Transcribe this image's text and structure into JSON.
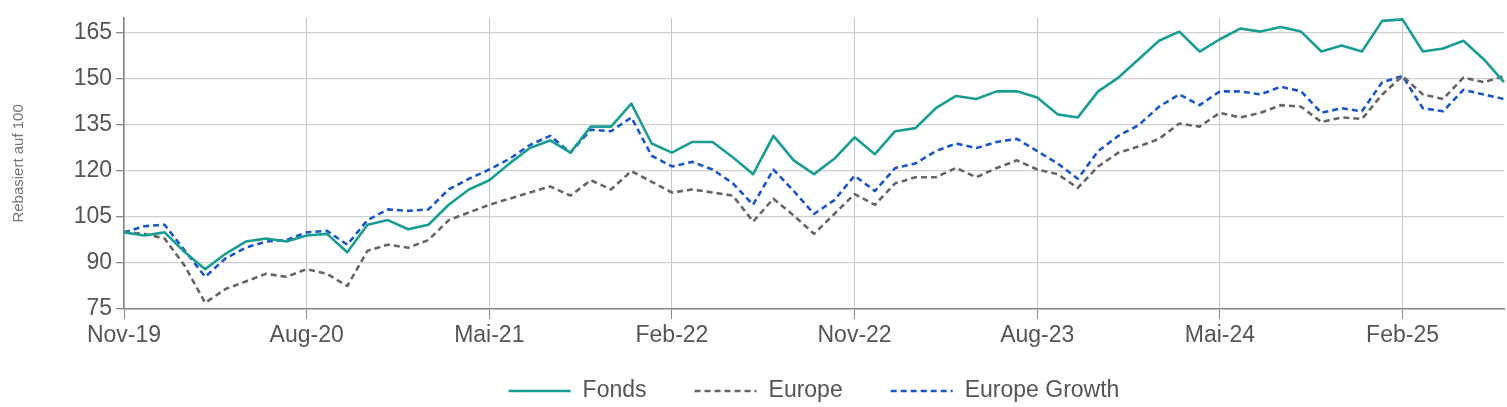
{
  "chart_data": {
    "type": "line",
    "ylabel": "Rebasiert auf 100",
    "categories": [
      "Nov-19",
      null,
      null,
      null,
      null,
      null,
      null,
      null,
      null,
      "Aug-20",
      null,
      null,
      null,
      null,
      null,
      null,
      null,
      null,
      "Mai-21",
      null,
      null,
      null,
      null,
      null,
      null,
      null,
      null,
      "Feb-22",
      null,
      null,
      null,
      null,
      null,
      null,
      null,
      null,
      "Nov-22",
      null,
      null,
      null,
      null,
      null,
      null,
      null,
      null,
      "Aug-23",
      null,
      null,
      null,
      null,
      null,
      null,
      null,
      null,
      "Mai-24",
      null,
      null,
      null,
      null,
      null,
      null,
      null,
      null,
      "Feb-25",
      null,
      null,
      null,
      null,
      null
    ],
    "series": [
      {
        "name": "Fonds",
        "color": "#1a9e94",
        "line_style": "solid",
        "values": [
          100,
          99,
          100,
          93.5,
          88,
          93,
          97,
          98,
          97,
          99,
          99.5,
          93.5,
          102.5,
          104,
          101,
          102.5,
          109,
          114,
          117,
          122.5,
          127.5,
          130,
          126,
          134.5,
          134.5,
          142,
          129,
          126,
          129.5,
          129.5,
          124.5,
          119,
          131.5,
          123.5,
          119,
          124,
          131,
          125.5,
          133,
          134,
          140.5,
          144.5,
          143.5,
          146,
          146,
          144,
          138.5,
          137.5,
          146,
          150.5,
          156.5,
          162.5,
          165.5,
          159,
          163,
          166.5,
          165.5,
          167,
          165.5,
          159,
          161,
          159,
          169,
          169.5,
          159,
          160,
          162.5,
          156.5,
          149
        ]
      },
      {
        "name": "Europe",
        "color": "#666666",
        "line_style": "dashed",
        "values": [
          100,
          99.5,
          98,
          89,
          77,
          81.5,
          84,
          86.5,
          85.5,
          88,
          86.5,
          82.5,
          94,
          96,
          95,
          97.5,
          104,
          106.5,
          109,
          111,
          113,
          115,
          112,
          117,
          114,
          120,
          116.5,
          113,
          114,
          113,
          112,
          103.5,
          111,
          105.5,
          99.5,
          106,
          112.5,
          109,
          116,
          118,
          118,
          121,
          118,
          121,
          123.5,
          120.5,
          119,
          114.5,
          121.5,
          126,
          128,
          130.5,
          135.5,
          134.5,
          139,
          137.5,
          139,
          141.5,
          141,
          136,
          137.5,
          137,
          145,
          151,
          145,
          143.5,
          150.5,
          149,
          151
        ]
      },
      {
        "name": "Europe Growth",
        "color": "#1a56c8",
        "line_style": "dashed",
        "values": [
          100,
          102,
          102.5,
          94,
          85.5,
          91.5,
          95,
          97,
          97.5,
          100,
          100.5,
          96,
          104,
          107.5,
          107,
          107.5,
          114,
          117.5,
          120.5,
          124,
          128.5,
          131.5,
          126,
          133.5,
          133,
          137.5,
          125,
          121.5,
          123,
          120.5,
          116,
          109,
          120.5,
          113.5,
          106,
          110.5,
          118.5,
          113.5,
          121,
          122.5,
          126.5,
          129,
          127.5,
          129.5,
          130.5,
          126.5,
          122.5,
          117.5,
          126.5,
          131.5,
          135,
          141,
          145,
          141.5,
          146,
          146,
          145,
          147.5,
          146,
          139,
          140.5,
          139.5,
          149,
          151,
          140.5,
          139.5,
          146.5,
          145,
          143.5
        ]
      }
    ],
    "ylim": [
      75,
      170
    ],
    "yticks": [
      75,
      90,
      105,
      120,
      135,
      150,
      165
    ],
    "grid": true,
    "legend": "bottom"
  }
}
